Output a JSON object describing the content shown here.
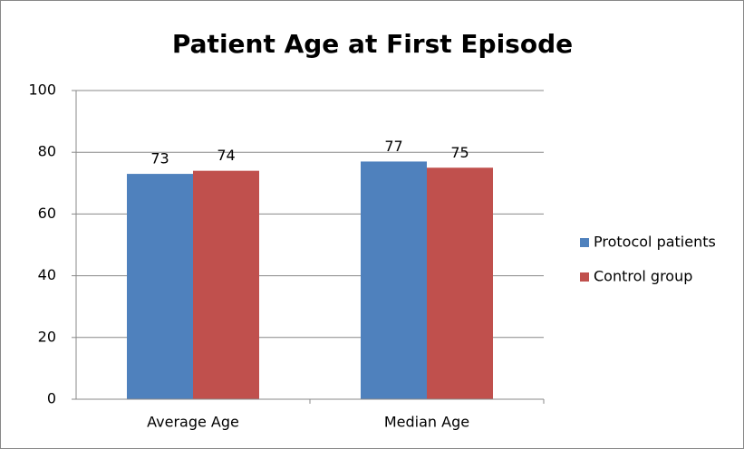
{
  "chart_data": {
    "type": "bar",
    "title": "Patient Age at First Episode",
    "categories": [
      "Average Age",
      "Median Age"
    ],
    "series": [
      {
        "name": "Protocol patients",
        "color": "#4f81bd",
        "values": [
          73,
          77
        ]
      },
      {
        "name": "Control group",
        "color": "#c0504d",
        "values": [
          74,
          75
        ]
      }
    ],
    "ylim": [
      0,
      100
    ],
    "yticks": [
      0,
      20,
      40,
      60,
      80,
      100
    ],
    "grid": true,
    "legend": "right"
  }
}
